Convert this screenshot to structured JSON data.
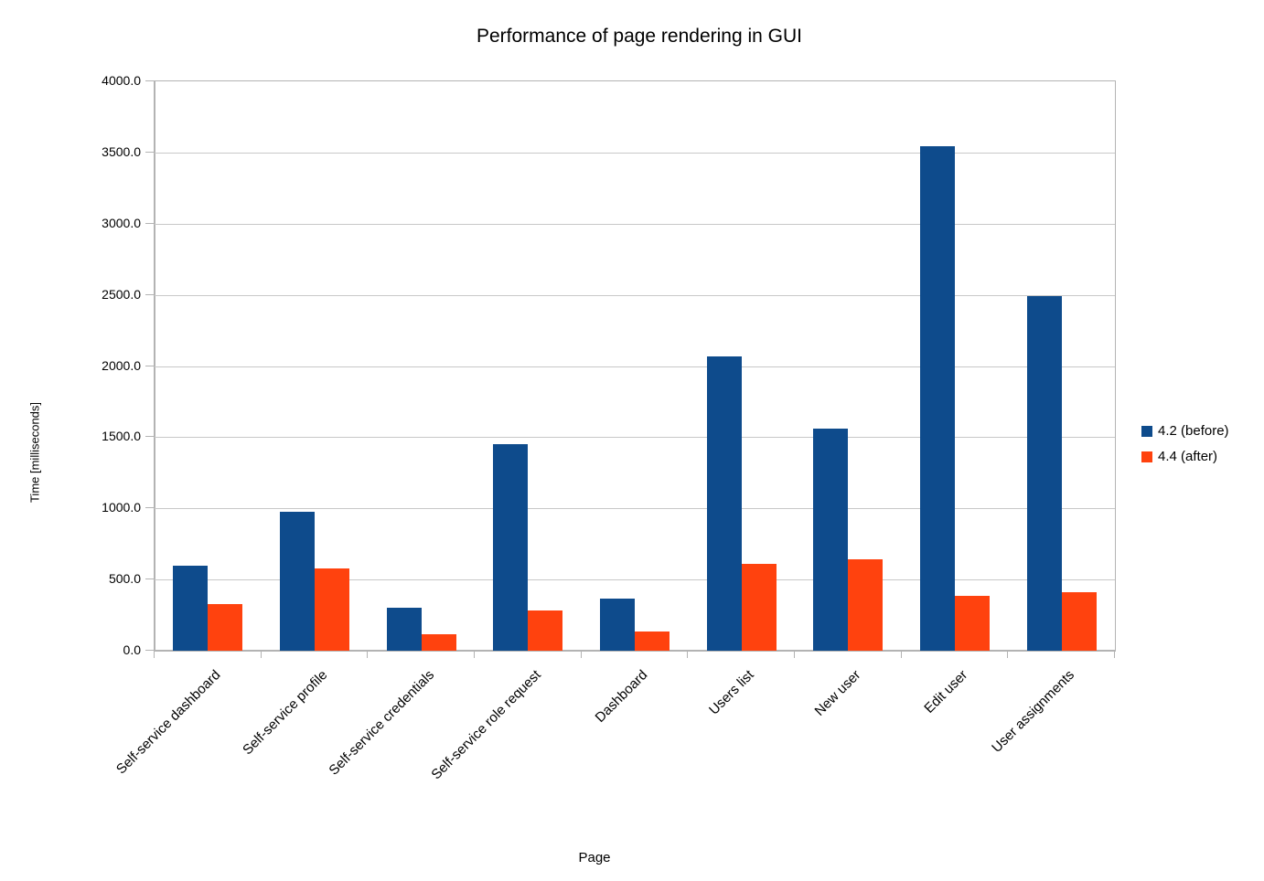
{
  "chart_data": {
    "type": "bar",
    "title": "Performance of page rendering in GUI",
    "xlabel": "Page",
    "ylabel": "Time [milliseconds]",
    "categories": [
      "Self-service dashboard",
      "Self-service profile",
      "Self-service credentials",
      "Self-service role request",
      "Dashboard",
      "Users list",
      "New user",
      "Edit user",
      "User assignments"
    ],
    "series": [
      {
        "name": "4.2 (before)",
        "color": "#0e4b8c",
        "values": [
          600,
          975,
          300,
          1450,
          365,
          2065,
          1560,
          3545,
          2490
        ]
      },
      {
        "name": "4.4 (after)",
        "color": "#ff420e",
        "values": [
          325,
          580,
          115,
          280,
          135,
          610,
          645,
          385,
          410
        ]
      }
    ],
    "ylim": [
      0,
      4000
    ],
    "ytick_step": 500,
    "ytick_decimals": 1,
    "grid": true,
    "legend_position": "right"
  },
  "colors": {
    "grid": "#c8c8c8",
    "axis": "#b3b3b3",
    "text": "#000000",
    "background": "#ffffff"
  }
}
